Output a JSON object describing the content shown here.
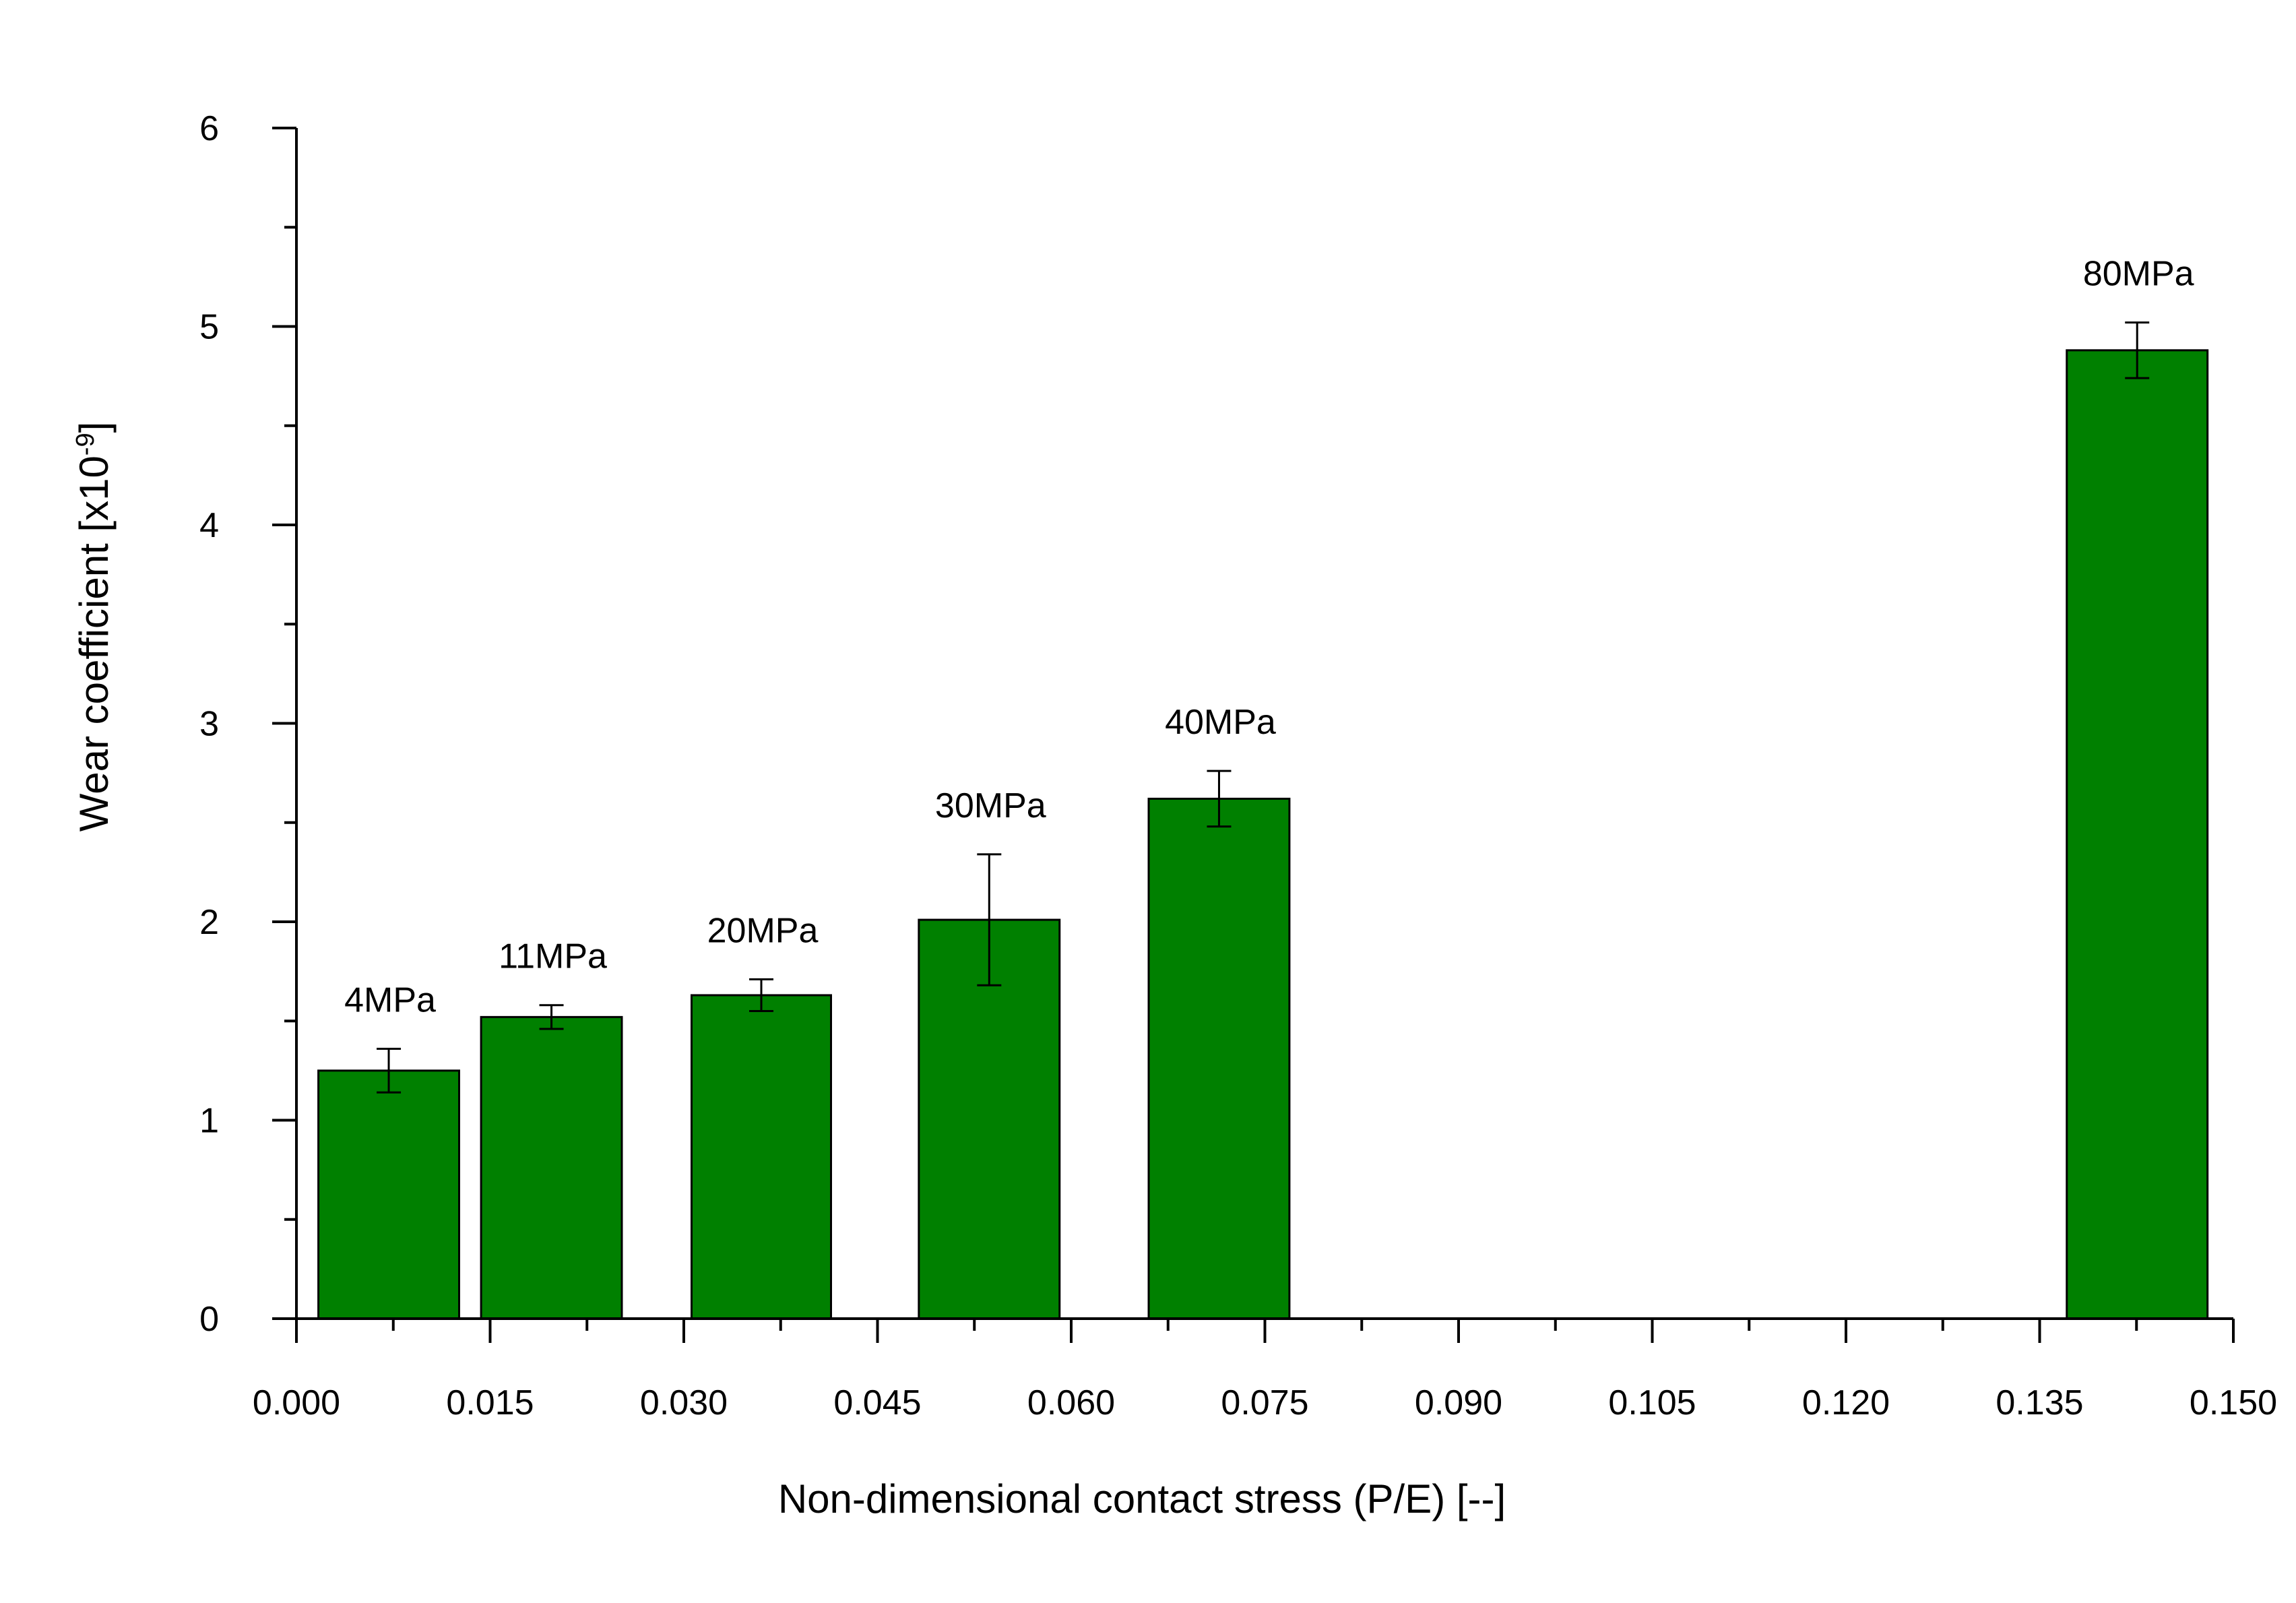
{
  "chart_data": {
    "type": "bar",
    "title": "",
    "xlabel": "Non-dimensional contact stress (P/E) [--]",
    "ylabel": "Wear coefficient [x10",
    "ylabel_sup": "-9",
    "ylabel_end": "]",
    "xlim": [
      0,
      0.15
    ],
    "ylim": [
      0,
      6
    ],
    "x_ticks": [
      "0.000",
      "0.015",
      "0.030",
      "0.045",
      "0.060",
      "0.075",
      "0.090",
      "0.105",
      "0.120",
      "0.135",
      "0.150"
    ],
    "y_ticks": [
      "0",
      "1",
      "2",
      "3",
      "4",
      "5",
      "6"
    ],
    "bar_color": "#008000",
    "series": [
      {
        "bars": [
          {
            "x_start": 0.0017,
            "x_end": 0.0126,
            "value": 1.25,
            "err": 0.11,
            "label": "4MPa"
          },
          {
            "x_start": 0.0143,
            "x_end": 0.0252,
            "value": 1.52,
            "err": 0.06,
            "label": "11MPa"
          },
          {
            "x_start": 0.0306,
            "x_end": 0.0414,
            "value": 1.63,
            "err": 0.08,
            "label": "20MPa"
          },
          {
            "x_start": 0.0482,
            "x_end": 0.0591,
            "value": 2.01,
            "err": 0.33,
            "label": "30MPa"
          },
          {
            "x_start": 0.066,
            "x_end": 0.0769,
            "value": 2.62,
            "err": 0.14,
            "label": "40MPa"
          },
          {
            "x_start": 0.1371,
            "x_end": 0.148,
            "value": 4.88,
            "err": 0.14,
            "label": "80MPa"
          }
        ]
      }
    ]
  }
}
